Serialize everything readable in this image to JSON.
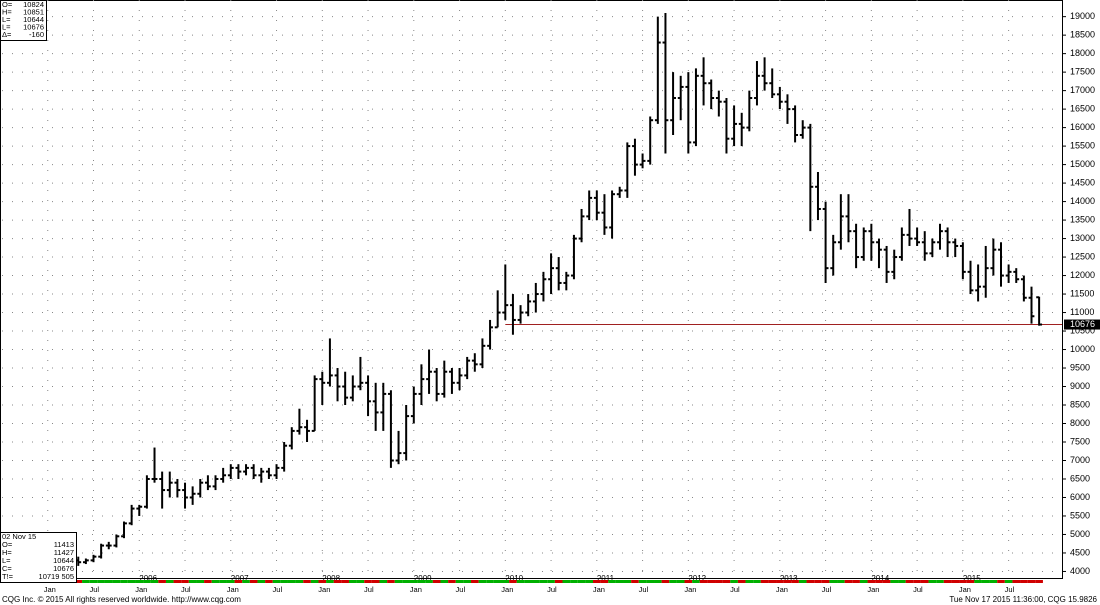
{
  "chart_data": {
    "type": "ohlc",
    "categories": [
      "2005-05",
      "2005-06",
      "2005-07",
      "2005-08",
      "2005-09",
      "2005-10",
      "2005-11",
      "2005-12",
      "2006-01",
      "2006-02",
      "2006-03",
      "2006-04",
      "2006-05",
      "2006-06",
      "2006-07",
      "2006-08",
      "2006-09",
      "2006-10",
      "2006-11",
      "2006-12",
      "2007-01",
      "2007-02",
      "2007-03",
      "2007-04",
      "2007-05",
      "2007-06",
      "2007-07",
      "2007-08",
      "2007-09",
      "2007-10",
      "2007-11",
      "2007-12",
      "2008-01",
      "2008-02",
      "2008-03",
      "2008-04",
      "2008-05",
      "2008-06",
      "2008-07",
      "2008-08",
      "2008-09",
      "2008-10",
      "2008-11",
      "2008-12",
      "2009-01",
      "2009-02",
      "2009-03",
      "2009-04",
      "2009-05",
      "2009-06",
      "2009-07",
      "2009-08",
      "2009-09",
      "2009-10",
      "2009-11",
      "2009-12",
      "2010-01",
      "2010-02",
      "2010-03",
      "2010-04",
      "2010-05",
      "2010-06",
      "2010-07",
      "2010-08",
      "2010-09",
      "2010-10",
      "2010-11",
      "2010-12",
      "2011-01",
      "2011-02",
      "2011-03",
      "2011-04",
      "2011-05",
      "2011-06",
      "2011-07",
      "2011-08",
      "2011-09",
      "2011-10",
      "2011-11",
      "2011-12",
      "2012-01",
      "2012-02",
      "2012-03",
      "2012-04",
      "2012-05",
      "2012-06",
      "2012-07",
      "2012-08",
      "2012-09",
      "2012-10",
      "2012-11",
      "2012-12",
      "2013-01",
      "2013-02",
      "2013-03",
      "2013-04",
      "2013-05",
      "2013-06",
      "2013-07",
      "2013-08",
      "2013-09",
      "2013-10",
      "2013-11",
      "2013-12",
      "2014-01",
      "2014-02",
      "2014-03",
      "2014-04",
      "2014-05",
      "2014-06",
      "2014-07",
      "2014-08",
      "2014-09",
      "2014-10",
      "2014-11",
      "2014-12",
      "2015-01",
      "2015-02",
      "2015-03",
      "2015-04",
      "2015-05",
      "2015-06",
      "2015-07",
      "2015-08",
      "2015-09",
      "2015-10",
      "2015-11"
    ],
    "open": [
      4300,
      4250,
      4300,
      4400,
      4700,
      4700,
      4950,
      5300,
      5700,
      5750,
      6500,
      6500,
      6200,
      6400,
      6200,
      6000,
      6100,
      6400,
      6300,
      6500,
      6600,
      6800,
      6700,
      6800,
      6600,
      6700,
      6600,
      6800,
      7400,
      7800,
      7900,
      7800,
      9200,
      9100,
      9300,
      9000,
      8700,
      9000,
      9100,
      8600,
      8300,
      8800,
      7000,
      7200,
      8200,
      8800,
      9200,
      9400,
      8800,
      9400,
      9100,
      9300,
      9700,
      9600,
      10100,
      10600,
      11000,
      11200,
      10800,
      11000,
      11300,
      11500,
      11900,
      12200,
      11800,
      12000,
      13000,
      13600,
      14100,
      13700,
      13300,
      14200,
      14300,
      15500,
      15000,
      15100,
      16200,
      18300,
      16200,
      16800,
      17100,
      15600,
      17400,
      17200,
      16800,
      16700,
      15700,
      16100,
      16000,
      16800,
      17400,
      17200,
      16900,
      16700,
      16500,
      15800,
      16000,
      14400,
      13800,
      12200,
      12900,
      13600,
      13200,
      12500,
      13200,
      12900,
      12700,
      12100,
      12500,
      13100,
      13000,
      12900,
      12600,
      12900,
      13200,
      12900,
      12800,
      12100,
      11600,
      11700,
      12200,
      12700,
      12000,
      12100,
      11900,
      11400,
      11413
    ],
    "high": [
      4400,
      4350,
      4450,
      4750,
      4800,
      5000,
      5350,
      5800,
      5800,
      6600,
      7350,
      6700,
      6700,
      6500,
      6400,
      6300,
      6500,
      6600,
      6600,
      6800,
      6900,
      6900,
      6900,
      6900,
      6800,
      6800,
      6900,
      7500,
      7900,
      8400,
      8100,
      9300,
      9400,
      10300,
      9500,
      9400,
      9300,
      9800,
      9300,
      9100,
      9100,
      8900,
      7800,
      8500,
      9000,
      9600,
      10000,
      9500,
      9700,
      9500,
      9500,
      9800,
      9900,
      10300,
      10800,
      11600,
      12300,
      11500,
      11200,
      11500,
      11800,
      12100,
      12600,
      12500,
      12100,
      13100,
      13800,
      14300,
      14300,
      14200,
      14300,
      14400,
      15600,
      15700,
      15300,
      16300,
      19000,
      19100,
      17500,
      17400,
      17500,
      17600,
      17900,
      17300,
      17000,
      16800,
      16600,
      16400,
      17000,
      17800,
      17900,
      17600,
      17100,
      16900,
      16600,
      16200,
      16100,
      14800,
      14000,
      13100,
      14200,
      14200,
      13400,
      13300,
      13400,
      13000,
      12800,
      12700,
      13300,
      13800,
      13300,
      13200,
      13000,
      13400,
      13300,
      13000,
      12900,
      12400,
      12300,
      12800,
      13000,
      12900,
      12300,
      12200,
      12000,
      11700,
      11427
    ],
    "low": [
      4150,
      4200,
      4250,
      4350,
      4600,
      4650,
      4900,
      5250,
      5500,
      5700,
      6400,
      5700,
      6000,
      6000,
      5700,
      5800,
      6000,
      6200,
      6200,
      6400,
      6500,
      6500,
      6600,
      6500,
      6400,
      6500,
      6500,
      6700,
      7300,
      7700,
      7500,
      7800,
      8500,
      9000,
      8600,
      8500,
      8600,
      8900,
      8200,
      7800,
      7800,
      6800,
      6900,
      7000,
      8000,
      8500,
      8800,
      8600,
      8700,
      8800,
      8900,
      9200,
      9400,
      9500,
      10000,
      10600,
      10800,
      10400,
      10700,
      10900,
      11000,
      11300,
      11500,
      11600,
      11600,
      11900,
      12900,
      13500,
      13500,
      13100,
      13000,
      14100,
      14100,
      14700,
      14900,
      15000,
      16100,
      15300,
      15800,
      16200,
      15300,
      15500,
      16600,
      16500,
      16300,
      15300,
      15500,
      15500,
      15900,
      16600,
      17000,
      16800,
      16500,
      16100,
      15600,
      15700,
      13200,
      13500,
      11800,
      12000,
      12700,
      12900,
      12200,
      12400,
      12400,
      12200,
      11800,
      11900,
      12400,
      12800,
      12800,
      12400,
      12500,
      12700,
      12500,
      12500,
      11900,
      11500,
      11300,
      11400,
      12000,
      11700,
      11800,
      11800,
      11300,
      10700,
      10644
    ],
    "close": [
      4250,
      4300,
      4400,
      4700,
      4700,
      4950,
      5300,
      5700,
      5750,
      6500,
      6500,
      6200,
      6400,
      6200,
      6000,
      6100,
      6400,
      6300,
      6500,
      6600,
      6800,
      6700,
      6800,
      6600,
      6700,
      6600,
      6800,
      7400,
      7800,
      7900,
      7800,
      9200,
      9100,
      9300,
      9000,
      8700,
      9000,
      9100,
      8600,
      8300,
      8800,
      7000,
      7200,
      8200,
      8800,
      9200,
      9400,
      8800,
      9400,
      9100,
      9300,
      9700,
      9600,
      10100,
      10600,
      11000,
      11200,
      10800,
      11000,
      11300,
      11500,
      11900,
      12200,
      11800,
      12000,
      13000,
      13600,
      14100,
      13700,
      13300,
      14200,
      14300,
      15500,
      15000,
      15100,
      16200,
      18300,
      16200,
      16800,
      17100,
      15600,
      17400,
      17200,
      16800,
      16700,
      15700,
      16100,
      16000,
      16800,
      17400,
      17200,
      16900,
      16700,
      16500,
      15800,
      16000,
      14400,
      13800,
      12200,
      12900,
      13600,
      13200,
      12500,
      13200,
      12900,
      12700,
      12100,
      12500,
      13100,
      13000,
      12900,
      12600,
      12900,
      13200,
      12900,
      12800,
      12100,
      11600,
      11700,
      12200,
      12700,
      12000,
      12100,
      11900,
      11400,
      10900,
      10676
    ],
    "color": "#000000",
    "up_color": "#00b000",
    "down_color": "#d00000",
    "xlim": [
      "2004-07",
      "2016-02"
    ],
    "xticks": [
      {
        "value": "2005-01",
        "label": "Jan"
      },
      {
        "value": "2005-07",
        "label": "Jul"
      },
      {
        "value": "2006-01",
        "label": "Jan"
      },
      {
        "value": "2006-07",
        "label": "Jul"
      },
      {
        "value": "2007-01",
        "label": "Jan"
      },
      {
        "value": "2007-07",
        "label": "Jul"
      },
      {
        "value": "2008-01",
        "label": "Jan"
      },
      {
        "value": "2008-07",
        "label": "Jul"
      },
      {
        "value": "2009-01",
        "label": "Jan"
      },
      {
        "value": "2009-07",
        "label": "Jul"
      },
      {
        "value": "2010-01",
        "label": "Jan"
      },
      {
        "value": "2010-07",
        "label": "Jul"
      },
      {
        "value": "2011-01",
        "label": "Jan"
      },
      {
        "value": "2011-07",
        "label": "Jul"
      },
      {
        "value": "2012-01",
        "label": "Jan"
      },
      {
        "value": "2012-07",
        "label": "Jul"
      },
      {
        "value": "2013-01",
        "label": "Jan"
      },
      {
        "value": "2013-07",
        "label": "Jul"
      },
      {
        "value": "2014-01",
        "label": "Jan"
      },
      {
        "value": "2014-07",
        "label": "Jul"
      },
      {
        "value": "2015-01",
        "label": "Jan"
      },
      {
        "value": "2015-07",
        "label": "Jul"
      }
    ],
    "year_labels": [
      {
        "value": "2006-01",
        "label": "2006"
      },
      {
        "value": "2007-01",
        "label": "2007"
      },
      {
        "value": "2008-01",
        "label": "2008"
      },
      {
        "value": "2009-01",
        "label": "2009"
      },
      {
        "value": "2010-01",
        "label": "2010"
      },
      {
        "value": "2011-01",
        "label": "2011"
      },
      {
        "value": "2012-01",
        "label": "2012"
      },
      {
        "value": "2013-01",
        "label": "2013"
      },
      {
        "value": "2014-01",
        "label": "2014"
      },
      {
        "value": "2015-01",
        "label": "2015"
      }
    ],
    "ylim": [
      3850,
      19450
    ],
    "yticks": [
      4000,
      4500,
      5000,
      5500,
      6000,
      6500,
      7000,
      7500,
      8000,
      8500,
      9000,
      9500,
      10000,
      10500,
      11000,
      11500,
      12000,
      12500,
      13000,
      13500,
      14000,
      14500,
      15000,
      15500,
      16000,
      16500,
      17000,
      17500,
      18000,
      18500,
      19000
    ],
    "grid": true,
    "last_price": 10676,
    "last_price_line_color": "#a02020",
    "last_price_line_start": "2010-01",
    "info_top": [
      {
        "label": "O=",
        "value": "10824"
      },
      {
        "label": "H=",
        "value": "10851"
      },
      {
        "label": "L=",
        "value": "10644"
      },
      {
        "label": "L=",
        "value": "10676"
      },
      {
        "label": "Δ=",
        "value": "-160"
      }
    ],
    "info_bottom": {
      "date": "02 Nov  15",
      "rows": [
        {
          "label": "O=",
          "value": "11413"
        },
        {
          "label": "H=",
          "value": "11427"
        },
        {
          "label": "L=",
          "value": "10644"
        },
        {
          "label": "C=",
          "value": "10676"
        },
        {
          "label": "T!=",
          "value": "10719  505"
        }
      ]
    },
    "footer_left": "CQG Inc. © 2015 All rights reserved worldwide. http://www.cqg.com",
    "footer_right": "Tue Nov 17 2015 11:36:00, CQG 15.9826"
  }
}
